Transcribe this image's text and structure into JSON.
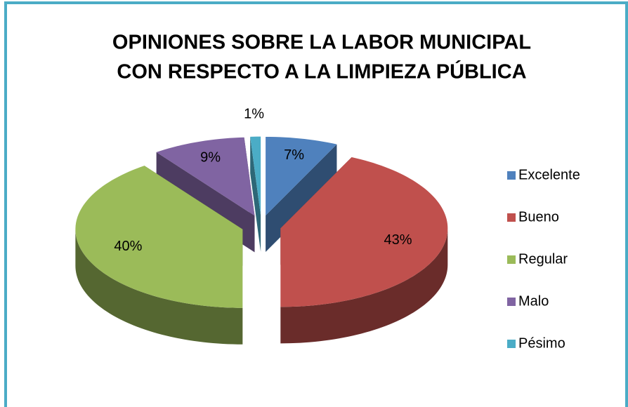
{
  "chart_data": {
    "type": "pie3d",
    "title": [
      "OPINIONES SOBRE LA LABOR MUNICIPAL",
      "CON RESPECTO A LA LIMPIEZA PÚBLICA"
    ],
    "categories": [
      "Excelente",
      "Bueno",
      "Regular",
      "Malo",
      "Pésimo"
    ],
    "values": [
      7,
      43,
      40,
      9,
      1
    ],
    "value_labels": [
      "7%",
      "43%",
      "40%",
      "9%",
      "1%"
    ],
    "colors": [
      "#4f81bd",
      "#c0504d",
      "#9bbb59",
      "#8064a2",
      "#4bacc6"
    ],
    "legend": "right"
  }
}
